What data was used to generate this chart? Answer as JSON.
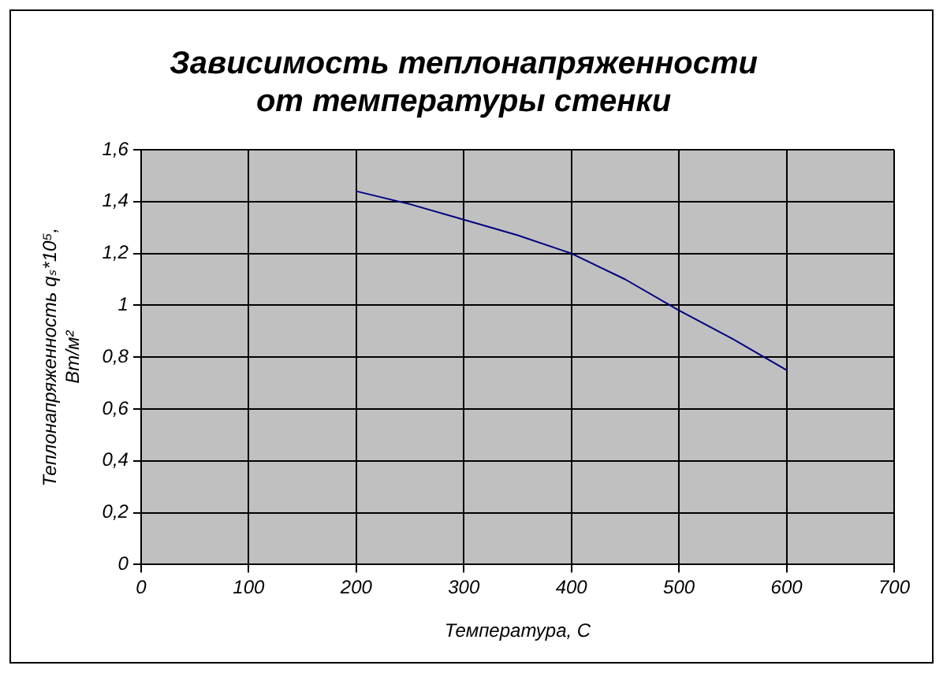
{
  "chart_data": {
    "type": "line",
    "title": "Зависимость теплонапряженности от температуры стенки",
    "xlabel": "Температура, С",
    "ylabel": "Теплонапряженность qₛ*10⁵, Вт/м²",
    "x": [
      200,
      250,
      300,
      350,
      400,
      450,
      500,
      550,
      600
    ],
    "series": [
      {
        "color": "#000080",
        "values": [
          1.44,
          1.39,
          1.33,
          1.27,
          1.2,
          1.1,
          0.98,
          0.87,
          0.75
        ]
      }
    ],
    "xlim": [
      0,
      700
    ],
    "xticks": [
      0,
      100,
      200,
      300,
      400,
      500,
      600,
      700
    ],
    "ylim": [
      0,
      1.6
    ],
    "yticks": [
      0,
      {
        "value": 0.2,
        "label": "0,2"
      },
      {
        "value": 0.4,
        "label": "0,4"
      },
      {
        "value": 0.6,
        "label": "0,6"
      },
      {
        "value": 0.8,
        "label": "0,8"
      },
      1,
      {
        "value": 1.2,
        "label": "1,2"
      },
      {
        "value": 1.4,
        "label": "1,4"
      },
      {
        "value": 1.6,
        "label": "1,6"
      }
    ],
    "grid": true,
    "legend": false,
    "marker": "none",
    "line_style": "solid"
  }
}
